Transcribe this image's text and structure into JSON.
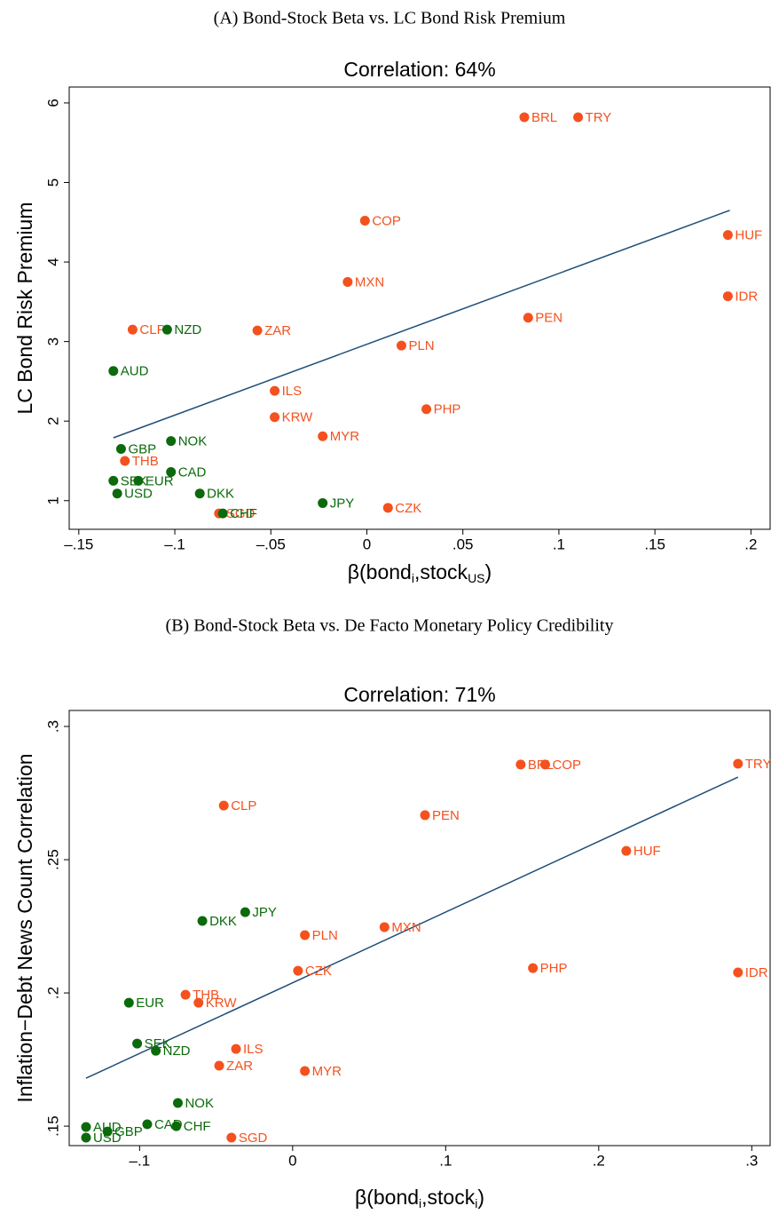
{
  "chart_data": [
    {
      "type": "scatter",
      "heading": "(A) Bond-Stock Beta vs. LC Bond Risk Premium",
      "title": "Correlation: 64%",
      "y_label": "LC Bond Risk Premium",
      "x_label_parts": [
        "β(bond",
        "i",
        ",stock",
        "US",
        ")"
      ],
      "xlim": [
        -0.155,
        0.21
      ],
      "ylim": [
        0.64,
        6.2
      ],
      "xticks": [
        {
          "value": -0.15,
          "label": "–.15"
        },
        {
          "value": -0.1,
          "label": "–.1"
        },
        {
          "value": -0.05,
          "label": "–.05"
        },
        0,
        {
          "value": 0.05,
          "label": ".05"
        },
        {
          "value": 0.1,
          "label": ".1"
        },
        {
          "value": 0.15,
          "label": ".15"
        },
        {
          "value": 0.2,
          "label": ".2"
        }
      ],
      "yticks": [
        1,
        2,
        3,
        4,
        5,
        6
      ],
      "labels": [
        "BRL",
        "TRY",
        "COP",
        "HUF",
        "MXN",
        "IDR",
        "PEN",
        "CLP",
        "NZD",
        "ZAR",
        "PLN",
        "AUD",
        "ILS",
        "PHP",
        "KRW",
        "MYR",
        "NOK",
        "GBP",
        "THB",
        "CAD",
        "SEK",
        "EUR",
        "USD",
        "DKK",
        "JPY",
        "CZK",
        "SGD",
        "CHF"
      ],
      "x": [
        0.082,
        0.11,
        -0.001,
        0.188,
        -0.01,
        0.188,
        0.084,
        -0.122,
        -0.104,
        -0.057,
        0.018,
        -0.132,
        -0.048,
        0.031,
        -0.048,
        -0.023,
        -0.102,
        -0.128,
        -0.126,
        -0.102,
        -0.132,
        -0.119,
        -0.13,
        -0.087,
        -0.023,
        0.011,
        -0.077,
        -0.075
      ],
      "values": [
        5.82,
        5.82,
        4.52,
        4.34,
        3.75,
        3.57,
        3.3,
        3.15,
        3.15,
        3.14,
        2.95,
        2.63,
        2.38,
        2.15,
        2.05,
        1.81,
        1.75,
        1.65,
        1.5,
        1.36,
        1.25,
        1.25,
        1.09,
        1.09,
        0.97,
        0.91,
        0.84,
        0.84
      ],
      "colors": [
        "#f4511e",
        "#f4511e",
        "#f4511e",
        "#f4511e",
        "#f4511e",
        "#f4511e",
        "#f4511e",
        "#f4511e",
        "#0b6a0b",
        "#f4511e",
        "#f4511e",
        "#0b6a0b",
        "#f4511e",
        "#f4511e",
        "#f4511e",
        "#f4511e",
        "#0b6a0b",
        "#0b6a0b",
        "#f4511e",
        "#0b6a0b",
        "#0b6a0b",
        "#0b6a0b",
        "#0b6a0b",
        "#0b6a0b",
        "#0b6a0b",
        "#f4511e",
        "#f4511e",
        "#0b6a0b"
      ],
      "fit_line": {
        "x": [
          -0.132,
          0.189
        ],
        "values": [
          1.79,
          4.65
        ],
        "color": "#1f4e79"
      }
    },
    {
      "type": "scatter",
      "heading": "(B) Bond-Stock Beta vs. De Facto Monetary Policy Credibility",
      "title": "Correlation: 71%",
      "y_label": "Inflation−Debt News Count Correlation",
      "x_label_parts": [
        "β(bond",
        "i",
        ",stock",
        "i",
        ")"
      ],
      "xlim": [
        -0.146,
        0.312
      ],
      "ylim": [
        0.1427,
        0.306
      ],
      "xticks": [
        {
          "value": -0.1,
          "label": "–.1"
        },
        0,
        {
          "value": 0.1,
          "label": ".1"
        },
        {
          "value": 0.2,
          "label": ".2"
        },
        {
          "value": 0.3,
          "label": ".3"
        }
      ],
      "yticks": [
        {
          "value": 0.15,
          "label": ".15"
        },
        {
          "value": 0.2,
          "label": ".2"
        },
        {
          "value": 0.25,
          "label": ".25"
        },
        {
          "value": 0.3,
          "label": ".3"
        }
      ],
      "labels": [
        "BRL",
        "COP",
        "TRY",
        "CLP",
        "PEN",
        "HUF",
        "JPY",
        "DKK",
        "PLN",
        "MXN",
        "IDR",
        "CZK",
        "PHP",
        "THB",
        "EUR",
        "KRW",
        "SEK",
        "NZD",
        "ILS",
        "ZAR",
        "MYR",
        "NOK",
        "AUD",
        "CAD",
        "CHF",
        "GBP",
        "USD",
        "SGD"
      ],
      "x": [
        0.149,
        0.165,
        0.291,
        -0.045,
        0.0865,
        0.218,
        -0.031,
        -0.059,
        0.008,
        0.06,
        0.291,
        0.0035,
        0.157,
        -0.07,
        -0.107,
        -0.0615,
        -0.1016,
        -0.0894,
        -0.037,
        -0.048,
        0.008,
        -0.075,
        -0.135,
        -0.095,
        -0.076,
        -0.121,
        -0.135,
        -0.04
      ],
      "values": [
        0.2857,
        0.2857,
        0.286,
        0.2703,
        0.2667,
        0.2533,
        0.2303,
        0.227,
        0.2217,
        0.2247,
        0.2077,
        0.2083,
        0.2093,
        0.1993,
        0.1963,
        0.1963,
        0.181,
        0.1783,
        0.179,
        0.1727,
        0.1707,
        0.1587,
        0.1497,
        0.1507,
        0.15,
        0.148,
        0.1457,
        0.1457
      ],
      "colors": [
        "#f4511e",
        "#f4511e",
        "#f4511e",
        "#f4511e",
        "#f4511e",
        "#f4511e",
        "#0b6a0b",
        "#0b6a0b",
        "#f4511e",
        "#f4511e",
        "#f4511e",
        "#f4511e",
        "#f4511e",
        "#f4511e",
        "#0b6a0b",
        "#f4511e",
        "#0b6a0b",
        "#0b6a0b",
        "#f4511e",
        "#f4511e",
        "#f4511e",
        "#0b6a0b",
        "#0b6a0b",
        "#0b6a0b",
        "#0b6a0b",
        "#0b6a0b",
        "#0b6a0b",
        "#f4511e"
      ],
      "fit_line": {
        "x": [
          -0.135,
          0.291
        ],
        "values": [
          0.168,
          0.281
        ],
        "color": "#1f4e79"
      }
    }
  ]
}
